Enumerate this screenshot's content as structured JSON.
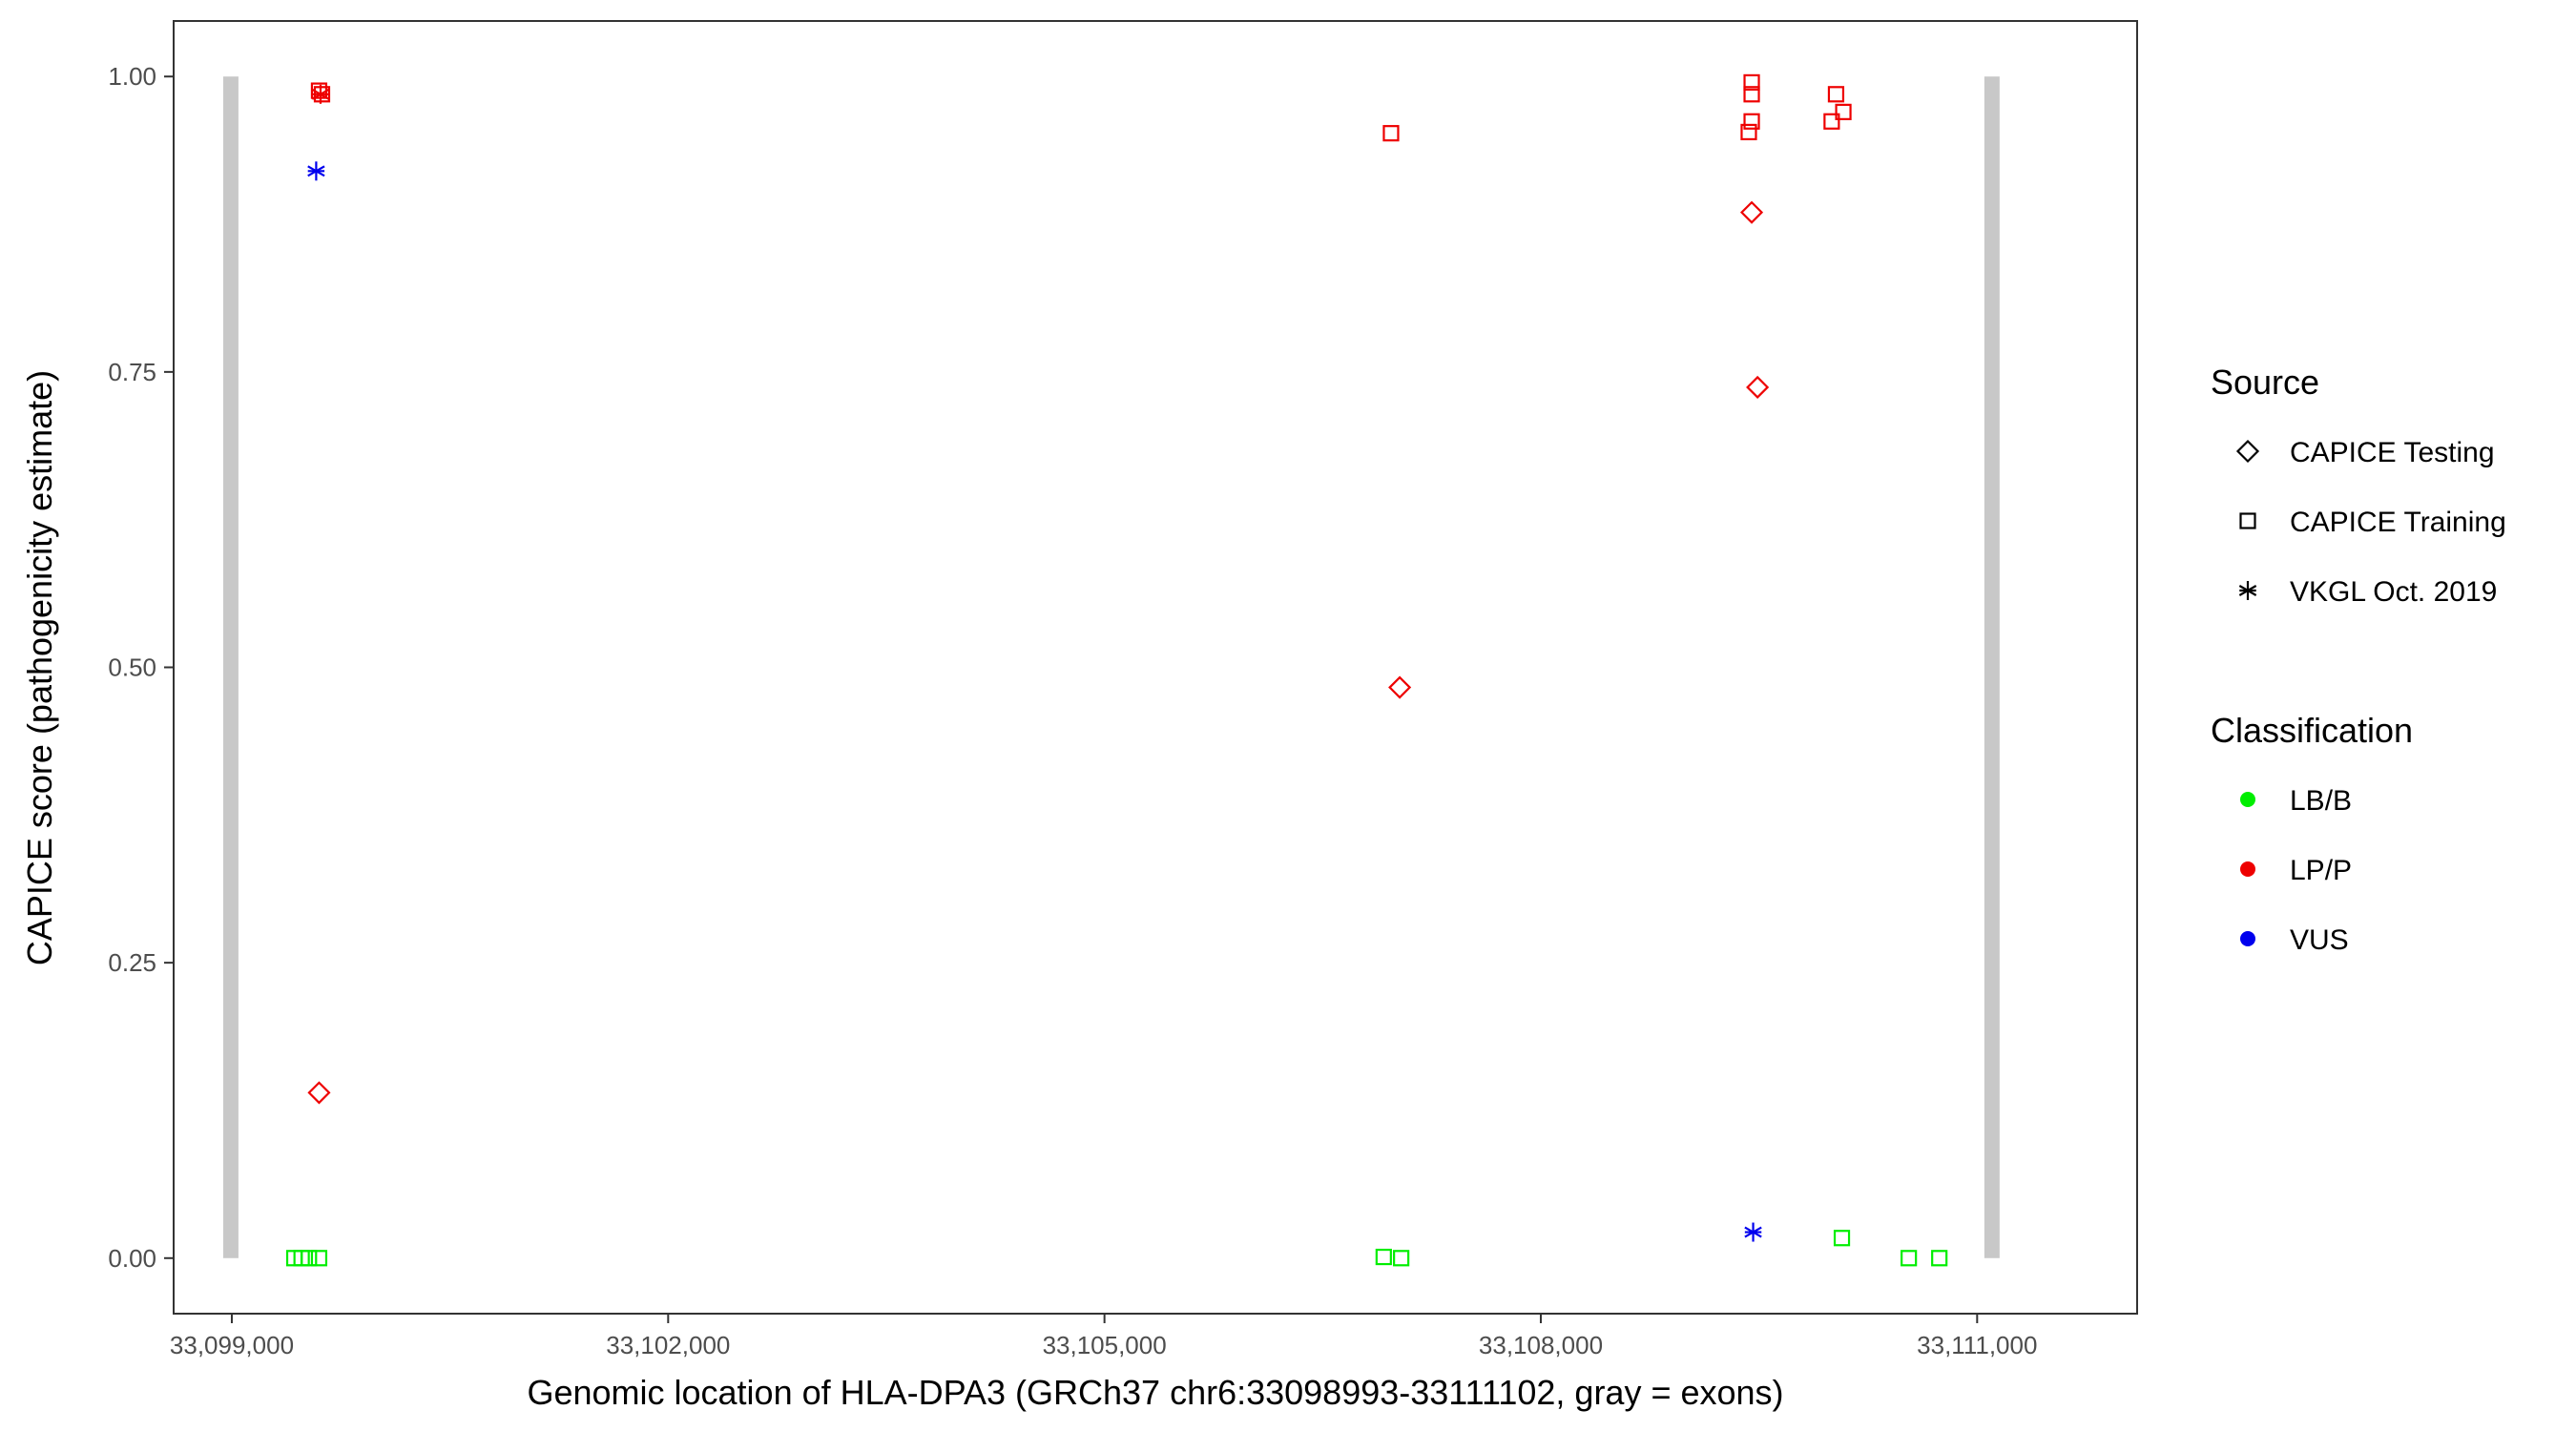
{
  "chart_data": {
    "type": "scatter",
    "title": "",
    "xlabel": "Genomic location of HLA-DPA3 (GRCh37 chr6:33098993-33111102, gray = exons)",
    "ylabel": "CAPICE score (pathogenicity estimate)",
    "xlim": [
      33098600,
      33112100
    ],
    "ylim": [
      -0.047,
      1.047
    ],
    "x_ticks": [
      33099000,
      33102000,
      33105000,
      33108000,
      33111000
    ],
    "x_tick_labels": [
      "33,099,000",
      "33,102,000",
      "33,105,000",
      "33,108,000",
      "33,111,000"
    ],
    "y_ticks": [
      0,
      0.25,
      0.5,
      0.75,
      1.0
    ],
    "y_tick_labels": [
      "0.00",
      "0.25",
      "0.50",
      "0.75",
      "1.00"
    ],
    "grid": false,
    "exons": [
      {
        "x": 33098993,
        "ymin": 0,
        "ymax": 1
      },
      {
        "x": 33111102,
        "ymin": 0,
        "ymax": 1
      }
    ],
    "legend_position": "right",
    "legend": {
      "source_title": "Source",
      "source_items": [
        {
          "label": "CAPICE Testing",
          "shape": "diamond"
        },
        {
          "label": "CAPICE Training",
          "shape": "square"
        },
        {
          "label": "VKGL Oct. 2019",
          "shape": "asterisk"
        }
      ],
      "class_title": "Classification",
      "class_items": [
        {
          "label": "LB/B",
          "color": "#00ee00"
        },
        {
          "label": "LP/P",
          "color": "#ee0000"
        },
        {
          "label": "VUS",
          "color": "#0000ee"
        }
      ]
    },
    "colors": {
      "LB/B": "#00ee00",
      "LP/P": "#ee0000",
      "VUS": "#0000ee",
      "exon": "#c8c8c8"
    },
    "points": [
      {
        "x": 33099430,
        "y": 0.0,
        "source": "CAPICE Training",
        "class": "LB/B"
      },
      {
        "x": 33099480,
        "y": 0.0,
        "source": "CAPICE Training",
        "class": "LB/B"
      },
      {
        "x": 33099530,
        "y": 0.0,
        "source": "CAPICE Training",
        "class": "LB/B"
      },
      {
        "x": 33099600,
        "y": 0.0,
        "source": "CAPICE Training",
        "class": "LB/B"
      },
      {
        "x": 33099600,
        "y": 0.14,
        "source": "CAPICE Testing",
        "class": "LP/P"
      },
      {
        "x": 33099580,
        "y": 0.92,
        "source": "VKGL Oct. 2019",
        "class": "VUS"
      },
      {
        "x": 33099610,
        "y": 0.985,
        "source": "VKGL Oct. 2019",
        "class": "LP/P"
      },
      {
        "x": 33099600,
        "y": 0.988,
        "source": "CAPICE Training",
        "class": "LP/P"
      },
      {
        "x": 33099620,
        "y": 0.985,
        "source": "CAPICE Training",
        "class": "LP/P"
      },
      {
        "x": 33106970,
        "y": 0.952,
        "source": "CAPICE Training",
        "class": "LP/P"
      },
      {
        "x": 33107030,
        "y": 0.483,
        "source": "CAPICE Testing",
        "class": "LP/P"
      },
      {
        "x": 33106920,
        "y": 0.001,
        "source": "CAPICE Training",
        "class": "LB/B"
      },
      {
        "x": 33107040,
        "y": 0.0,
        "source": "CAPICE Training",
        "class": "LB/B"
      },
      {
        "x": 33109450,
        "y": 0.995,
        "source": "CAPICE Training",
        "class": "LP/P"
      },
      {
        "x": 33109450,
        "y": 0.985,
        "source": "CAPICE Training",
        "class": "LP/P"
      },
      {
        "x": 33109450,
        "y": 0.962,
        "source": "CAPICE Training",
        "class": "LP/P"
      },
      {
        "x": 33109430,
        "y": 0.953,
        "source": "CAPICE Training",
        "class": "LP/P"
      },
      {
        "x": 33109450,
        "y": 0.885,
        "source": "CAPICE Testing",
        "class": "LP/P"
      },
      {
        "x": 33109490,
        "y": 0.737,
        "source": "CAPICE Testing",
        "class": "LP/P"
      },
      {
        "x": 33109460,
        "y": 0.022,
        "source": "VKGL Oct. 2019",
        "class": "VUS"
      },
      {
        "x": 33110030,
        "y": 0.985,
        "source": "CAPICE Training",
        "class": "LP/P"
      },
      {
        "x": 33110000,
        "y": 0.962,
        "source": "CAPICE Training",
        "class": "LP/P"
      },
      {
        "x": 33110080,
        "y": 0.97,
        "source": "CAPICE Training",
        "class": "LP/P"
      },
      {
        "x": 33110070,
        "y": 0.017,
        "source": "CAPICE Training",
        "class": "LB/B"
      },
      {
        "x": 33110530,
        "y": 0.0,
        "source": "CAPICE Training",
        "class": "LB/B"
      },
      {
        "x": 33110740,
        "y": 0.0,
        "source": "CAPICE Training",
        "class": "LB/B"
      }
    ]
  }
}
